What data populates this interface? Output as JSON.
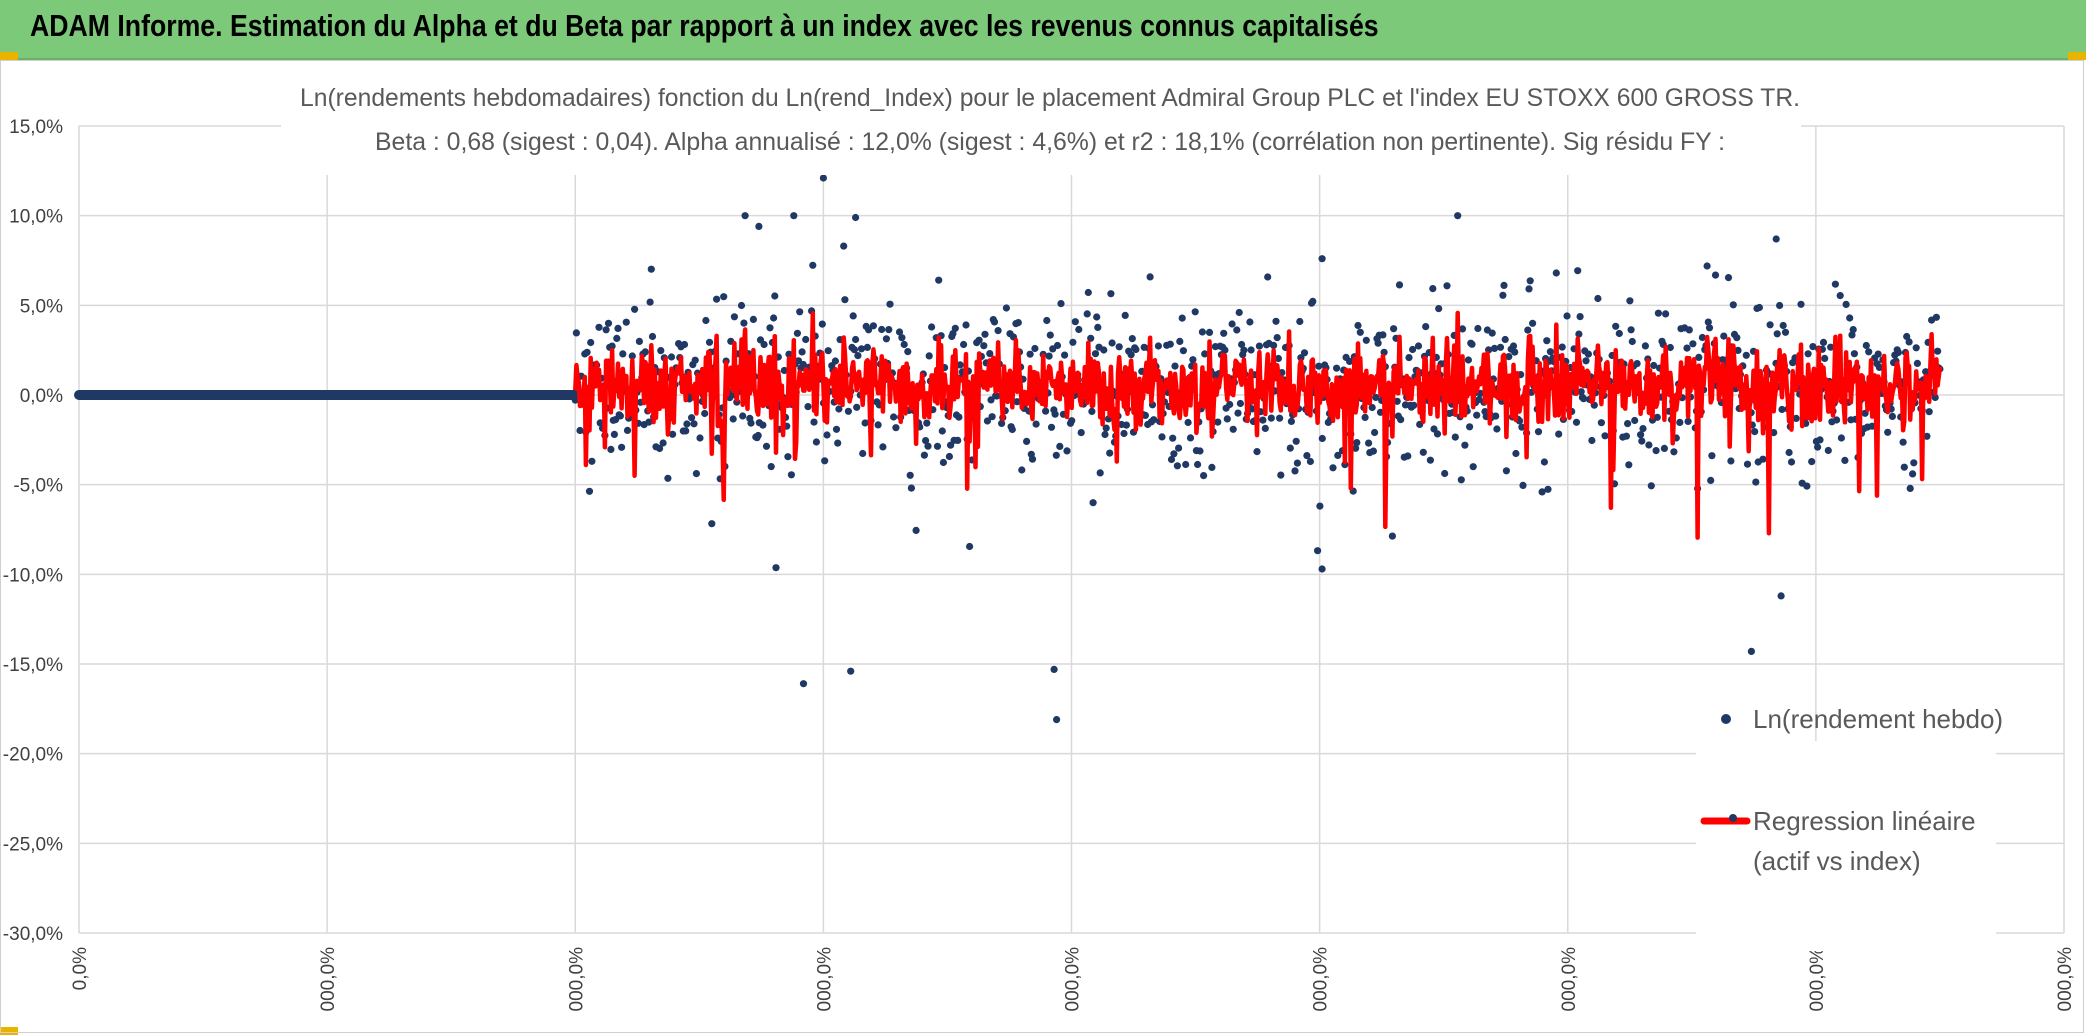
{
  "header": {
    "title": "ADAM Informe. Estimation du Alpha et du Beta par rapport à un index avec les revenus connus capitalisés"
  },
  "colors": {
    "title_bar": "#7dc97a",
    "points": "#203864",
    "regression": "#ff0000",
    "grid": "#d9d9d9"
  },
  "chart_data": {
    "type": "scatter",
    "title_line1": "Ln(rendements hebdomadaires) fonction du Ln(rend_Index) pour le placement Admiral Group PLC et l'index EU STOXX 600 GROSS TR.",
    "title_line2": "Beta : 0,68 (sigest : 0,04). Alpha annualisé : 12,0% (sigest : 4,6%) et r2 : 18,1% (corrélation non pertinente). Sig résidu FY :",
    "ylim": [
      -0.3,
      0.15
    ],
    "y_ticks": [
      "15,0%",
      "10,0%",
      "5,0%",
      "0,0%",
      "-5,0%",
      "-10,0%",
      "-15,0%",
      "-20,0%",
      "-25,0%",
      "-30,0%"
    ],
    "x_ticks": [
      "0,0%",
      "000,0%",
      "000,0%",
      "000,0%",
      "000,0%",
      "000,0%",
      "000,0%",
      "000,0%",
      "000,0%"
    ],
    "grid": true,
    "legend_position": "right",
    "series": [
      {
        "name": "Ln(rendement hebdo)",
        "kind": "points",
        "color": "#203864"
      },
      {
        "name": "Regression linéaire",
        "name_line2": "(actif vs index)",
        "kind": "line",
        "color": "#ff0000"
      }
    ],
    "flat_segment": {
      "x_start": 0,
      "x_end": 2.0,
      "y": 0.0
    },
    "scatter_x_range": [
      2.0,
      7.5
    ],
    "notable_points": [
      {
        "x": 3.0,
        "y": 0.121
      },
      {
        "x": 3.13,
        "y": 0.099
      },
      {
        "x": 2.92,
        "y": -0.161
      },
      {
        "x": 3.11,
        "y": -0.154
      },
      {
        "x": 3.94,
        "y": -0.181
      },
      {
        "x": 3.93,
        "y": -0.153
      },
      {
        "x": 6.74,
        "y": -0.143
      },
      {
        "x": 6.86,
        "y": -0.112
      },
      {
        "x": 5.01,
        "y": -0.097
      },
      {
        "x": 6.84,
        "y": 0.087
      },
      {
        "x": 2.74,
        "y": 0.094
      },
      {
        "x": 5.01,
        "y": 0.076
      }
    ]
  }
}
